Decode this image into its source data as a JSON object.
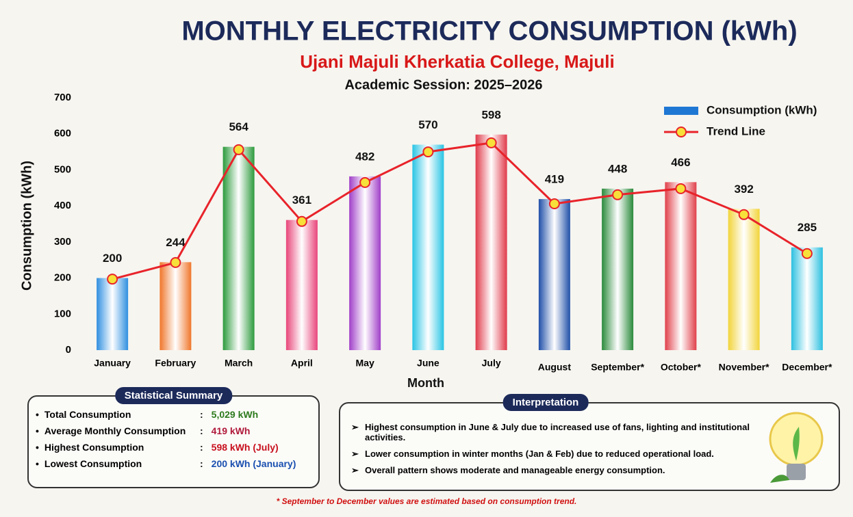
{
  "chart_data": {
    "type": "bar",
    "title": "MONTHLY ELECTRICITY CONSUMPTION (kWh)",
    "subtitle": "Ujani Majuli Kherkatia College, Majuli",
    "session": "Academic Session: 2025–2026",
    "x_label": "Month",
    "y_label": "Consumption (kWh)",
    "categories": [
      "January",
      "February",
      "March",
      "April",
      "May",
      "June",
      "July",
      "August",
      "September*",
      "October*",
      "November*",
      "December*"
    ],
    "series": [
      {
        "name": "Consumption (kWh)",
        "type": "bar",
        "color": "#1f77d4",
        "colors": [
          "#2f8fe0",
          "#f0762a",
          "#2c9a3c",
          "#e8457a",
          "#a03ec8",
          "#28c4e4",
          "#e03a4a",
          "#1f4fa8",
          "#2a8a3a",
          "#e0404a",
          "#f2d43a",
          "#2cc0e0"
        ],
        "values": [
          200,
          244,
          564,
          361,
          482,
          570,
          598,
          419,
          448,
          466,
          392,
          285
        ]
      },
      {
        "name": "Trend Line",
        "type": "line",
        "color": "#e8232a",
        "marker_color": "#f7e03a",
        "values": [
          197,
          243,
          556,
          357,
          465,
          550,
          575,
          406,
          431,
          448,
          376,
          268
        ]
      }
    ],
    "ylim": [
      0,
      700
    ],
    "yticks": [
      0,
      100,
      200,
      300,
      400,
      500,
      600,
      700
    ],
    "grid": false,
    "legend": "top-right"
  },
  "summary": {
    "title": "Statistical Summary",
    "items": [
      {
        "label": "Total Consumption",
        "value": "5,029 kWh",
        "color": "#2d7a1e"
      },
      {
        "label": "Average Monthly Consumption",
        "value": "419 kWh",
        "color": "#b01a3a"
      },
      {
        "label": "Highest Consumption",
        "value": "598 kWh (July)",
        "color": "#c8101e"
      },
      {
        "label": "Lowest Consumption",
        "value": "200 kWh (January)",
        "color": "#1a4fb0"
      }
    ]
  },
  "interpretation": {
    "title": "Interpretation",
    "points": [
      "Highest consumption in June & July due to increased use of fans, lighting and institutional activities.",
      "Lower consumption in winter months (Jan & Feb) due to reduced operational load.",
      "Overall pattern shows moderate and manageable energy consumption."
    ]
  },
  "footnote": "* September to December values are estimated based on consumption trend."
}
